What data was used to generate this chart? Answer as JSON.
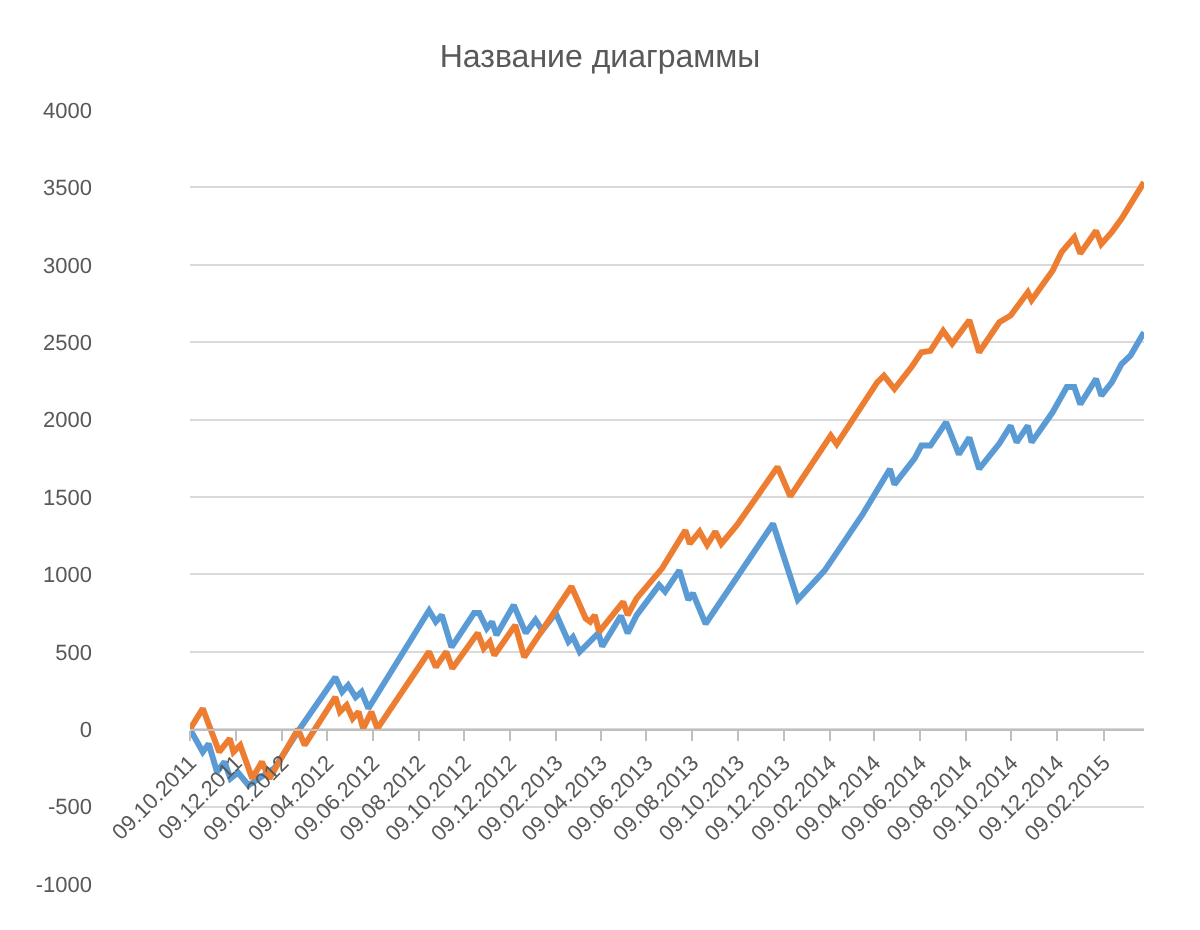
{
  "chart_data": {
    "type": "line",
    "title": "Название диаграммы",
    "xlim": [
      "2011-10-09",
      "2015-04-04"
    ],
    "xticks": [
      {
        "value": "2011-10-09",
        "label": "09.10.2011"
      },
      {
        "value": "2011-12-09",
        "label": "09.12.2011"
      },
      {
        "value": "2012-02-09",
        "label": "09.02.2012"
      },
      {
        "value": "2012-04-09",
        "label": "09.04.2012"
      },
      {
        "value": "2012-06-09",
        "label": "09.06.2012"
      },
      {
        "value": "2012-08-09",
        "label": "09.08.2012"
      },
      {
        "value": "2012-10-09",
        "label": "09.10.2012"
      },
      {
        "value": "2012-12-09",
        "label": "09.12.2012"
      },
      {
        "value": "2013-02-09",
        "label": "09.02.2013"
      },
      {
        "value": "2013-04-09",
        "label": "09.04.2013"
      },
      {
        "value": "2013-06-09",
        "label": "09.06.2013"
      },
      {
        "value": "2013-08-09",
        "label": "09.08.2013"
      },
      {
        "value": "2013-10-09",
        "label": "09.10.2013"
      },
      {
        "value": "2013-12-09",
        "label": "09.12.2013"
      },
      {
        "value": "2014-02-09",
        "label": "09.02.2014"
      },
      {
        "value": "2014-04-09",
        "label": "09.04.2014"
      },
      {
        "value": "2014-06-09",
        "label": "09.06.2014"
      },
      {
        "value": "2014-08-09",
        "label": "09.08.2014"
      },
      {
        "value": "2014-10-09",
        "label": "09.10.2014"
      },
      {
        "value": "2014-12-09",
        "label": "09.12.2014"
      },
      {
        "value": "2015-02-09",
        "label": "09.02.2015"
      }
    ],
    "ylim": [
      -1000,
      4000
    ],
    "yticks": [
      -1000,
      -500,
      0,
      500,
      1000,
      1500,
      2000,
      2500,
      3000,
      3500,
      4000
    ],
    "grid": "y",
    "marker": "none",
    "line_style": "solid",
    "series": [
      {
        "color": "#5b9bd5",
        "x": [
          "2011-10-09",
          "2011-10-26",
          "2011-11-03",
          "2011-11-14",
          "2011-11-24",
          "2011-12-02",
          "2011-12-12",
          "2011-12-26",
          "2012-01-09",
          "2012-01-30",
          "2012-03-03",
          "2012-04-20",
          "2012-04-29",
          "2012-05-07",
          "2012-05-17",
          "2012-05-25",
          "2012-06-03",
          "2012-08-23",
          "2012-09-01",
          "2012-09-09",
          "2012-09-22",
          "2012-10-22",
          "2012-10-29",
          "2012-11-08",
          "2012-11-15",
          "2012-11-21",
          "2012-12-14",
          "2012-12-30",
          "2013-01-12",
          "2013-01-21",
          "2013-02-08",
          "2013-02-25",
          "2013-03-03",
          "2013-03-12",
          "2013-04-06",
          "2013-04-11",
          "2013-05-06",
          "2013-05-15",
          "2013-05-27",
          "2013-06-26",
          "2013-07-04",
          "2013-07-23",
          "2013-08-04",
          "2013-08-10",
          "2013-08-27",
          "2013-11-25",
          "2013-12-28",
          "2014-02-02",
          "2014-03-24",
          "2014-04-30",
          "2014-05-06",
          "2014-06-02",
          "2014-06-11",
          "2014-06-23",
          "2014-07-14",
          "2014-07-31",
          "2014-08-14",
          "2014-08-27",
          "2014-09-23",
          "2014-10-08",
          "2014-10-16",
          "2014-10-31",
          "2014-11-05",
          "2014-12-03",
          "2014-12-22",
          "2015-01-01",
          "2015-01-09",
          "2015-01-30",
          "2015-02-06",
          "2015-02-20",
          "2015-03-05",
          "2015-03-17",
          "2015-04-04"
        ],
        "values": [
          0,
          -147,
          -95,
          -276,
          -211,
          -319,
          -280,
          -362,
          -319,
          -250,
          0,
          336,
          241,
          284,
          207,
          241,
          134,
          767,
          694,
          737,
          530,
          750,
          750,
          651,
          694,
          608,
          802,
          621,
          707,
          638,
          750,
          565,
          595,
          500,
          621,
          534,
          733,
          621,
          737,
          931,
          888,
          1026,
          836,
          879,
          681,
          1327,
          836,
          1026,
          1384,
          1681,
          1582,
          1750,
          1832,
          1832,
          1983,
          1776,
          1884,
          1681,
          1845,
          1961,
          1853,
          1961,
          1853,
          2047,
          2211,
          2211,
          2099,
          2263,
          2155,
          2241,
          2358,
          2414,
          2565
        ]
      },
      {
        "color": "#ed7d31",
        "x": [
          "2011-10-09",
          "2011-10-26",
          "2011-11-17",
          "2011-12-01",
          "2011-12-06",
          "2011-12-15",
          "2011-12-31",
          "2012-01-13",
          "2012-01-23",
          "2012-03-01",
          "2012-03-10",
          "2012-04-20",
          "2012-04-26",
          "2012-05-05",
          "2012-05-13",
          "2012-05-21",
          "2012-05-27",
          "2012-06-07",
          "2012-06-15",
          "2012-08-23",
          "2012-09-01",
          "2012-09-15",
          "2012-09-23",
          "2012-10-27",
          "2012-11-04",
          "2012-11-12",
          "2012-11-18",
          "2012-12-16",
          "2012-12-28",
          "2013-03-01",
          "2013-03-20",
          "2013-03-26",
          "2013-04-01",
          "2013-04-07",
          "2013-05-09",
          "2013-05-15",
          "2013-05-27",
          "2013-06-30",
          "2013-07-31",
          "2013-08-06",
          "2013-08-19",
          "2013-08-29",
          "2013-09-09",
          "2013-09-17",
          "2013-10-08",
          "2013-12-01",
          "2013-12-18",
          "2014-02-10",
          "2014-02-18",
          "2014-04-13",
          "2014-04-22",
          "2014-05-06",
          "2014-05-29",
          "2014-06-11",
          "2014-06-23",
          "2014-07-10",
          "2014-07-22",
          "2014-08-14",
          "2014-08-27",
          "2014-09-23",
          "2014-10-08",
          "2014-10-31",
          "2014-11-05",
          "2014-12-03",
          "2014-12-15",
          "2015-01-01",
          "2015-01-09",
          "2015-01-30",
          "2015-02-06",
          "2015-02-20",
          "2015-03-05",
          "2015-04-04"
        ],
        "values": [
          0,
          134,
          -147,
          -60,
          -147,
          -103,
          -319,
          -211,
          -319,
          0,
          -103,
          207,
          112,
          155,
          69,
          112,
          4,
          112,
          4,
          500,
          401,
          500,
          392,
          621,
          522,
          565,
          478,
          672,
          466,
          922,
          715,
          694,
          737,
          629,
          823,
          737,
          845,
          1039,
          1284,
          1198,
          1276,
          1190,
          1276,
          1198,
          1319,
          1694,
          1504,
          1897,
          1841,
          2241,
          2284,
          2198,
          2341,
          2435,
          2444,
          2573,
          2491,
          2642,
          2435,
          2629,
          2672,
          2823,
          2772,
          2961,
          3082,
          3177,
          3073,
          3220,
          3134,
          3211,
          3297,
          3534
        ]
      }
    ]
  }
}
